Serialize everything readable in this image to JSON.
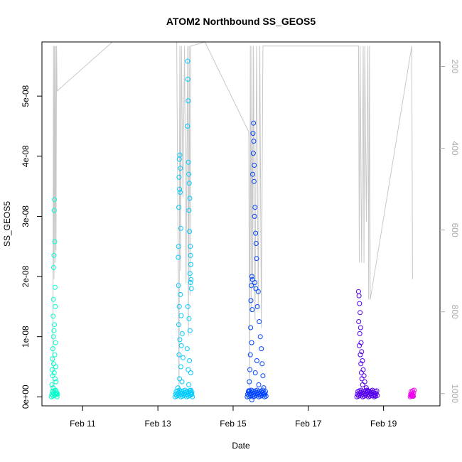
{
  "chart_data": {
    "type": "scatter",
    "title": "ATOM2 Northbound SS_GEOS5",
    "xlabel": "Date",
    "ylabel": "SS_GEOS5",
    "x_unit": "days",
    "xlim": [
      "2016-02-09T22:00",
      "2016-02-20T12:00"
    ],
    "ylim": [
      -1.5e-09,
      5.9e-08
    ],
    "x_ticks": [
      {
        "date": "2016-02-11",
        "label": "Feb 11"
      },
      {
        "date": "2016-02-13",
        "label": "Feb 13"
      },
      {
        "date": "2016-02-15",
        "label": "Feb 15"
      },
      {
        "date": "2016-02-17",
        "label": "Feb 17"
      },
      {
        "date": "2016-02-19",
        "label": "Feb 19"
      }
    ],
    "y_ticks": [
      {
        "value": 0,
        "label": "0e+00"
      },
      {
        "value": 1e-08,
        "label": "1e-08"
      },
      {
        "value": 2e-08,
        "label": "2e-08"
      },
      {
        "value": 3e-08,
        "label": "3e-08"
      },
      {
        "value": 4e-08,
        "label": "4e-08"
      },
      {
        "value": 5e-08,
        "label": "5e-08"
      }
    ],
    "secondary_axis": {
      "label_color": "#aaaaaa",
      "reversed": true,
      "ylim": [
        1030,
        140
      ],
      "ticks": [
        {
          "value": 200,
          "label": "200"
        },
        {
          "value": 400,
          "label": "400"
        },
        {
          "value": 600,
          "label": "600"
        },
        {
          "value": 800,
          "label": "800"
        },
        {
          "value": 1000,
          "label": "1000"
        }
      ]
    },
    "pressure_trace_color": "#c8c8c8",
    "pressure_trace": [
      [
        "2016-02-10T05:00",
        1010
      ],
      [
        "2016-02-10T05:20",
        150
      ],
      [
        "2016-02-10T05:40",
        720
      ],
      [
        "2016-02-10T06:00",
        150
      ],
      [
        "2016-02-10T06:20",
        680
      ],
      [
        "2016-02-10T06:40",
        150
      ],
      [
        "2016-02-10T07:00",
        650
      ],
      [
        "2016-02-10T07:20",
        150
      ],
      [
        "2016-02-10T07:40",
        260
      ],
      [
        "2016-02-11T19:00",
        140
      ],
      [
        "2016-02-13T12:00",
        140
      ],
      [
        "2016-02-13T13:30",
        1005
      ],
      [
        "2016-02-13T14:00",
        150
      ],
      [
        "2016-02-13T14:30",
        700
      ],
      [
        "2016-02-13T15:00",
        150
      ],
      [
        "2016-02-13T16:00",
        520
      ],
      [
        "2016-02-13T17:00",
        150
      ],
      [
        "2016-02-13T18:00",
        730
      ],
      [
        "2016-02-13T19:00",
        150
      ],
      [
        "2016-02-13T19:30",
        860
      ],
      [
        "2016-02-13T20:00",
        150
      ],
      [
        "2016-02-13T20:30",
        760
      ],
      [
        "2016-02-13T21:00",
        150
      ],
      [
        "2016-02-14T06:00",
        140
      ],
      [
        "2016-02-15T10:00",
        360
      ],
      [
        "2016-02-15T10:30",
        1005
      ],
      [
        "2016-02-15T11:00",
        150
      ],
      [
        "2016-02-15T11:30",
        800
      ],
      [
        "2016-02-15T12:00",
        150
      ],
      [
        "2016-02-15T12:30",
        740
      ],
      [
        "2016-02-15T13:00",
        150
      ],
      [
        "2016-02-15T14:00",
        820
      ],
      [
        "2016-02-15T15:00",
        150
      ],
      [
        "2016-02-15T16:00",
        790
      ],
      [
        "2016-02-15T17:00",
        150
      ],
      [
        "2016-02-15T18:00",
        840
      ],
      [
        "2016-02-15T19:00",
        150
      ],
      [
        "2016-02-18T08:00",
        150
      ],
      [
        "2016-02-18T08:30",
        680
      ],
      [
        "2016-02-18T09:00",
        150
      ],
      [
        "2016-02-18T10:00",
        680
      ],
      [
        "2016-02-18T11:00",
        150
      ],
      [
        "2016-02-18T11:30",
        680
      ],
      [
        "2016-02-18T12:00",
        150
      ],
      [
        "2016-02-18T13:00",
        580
      ],
      [
        "2016-02-18T14:00",
        150
      ],
      [
        "2016-02-18T14:30",
        770
      ],
      [
        "2016-02-18T15:00",
        150
      ],
      [
        "2016-02-18T15:30",
        770
      ],
      [
        "2016-02-19T18:00",
        150
      ],
      [
        "2016-02-19T18:30",
        720
      ]
    ],
    "series": [
      {
        "color": "#00ffcc",
        "x_range": [
          "2016-02-10T04:00",
          "2016-02-10T08:00"
        ],
        "points": [
          [
            "2016-02-10T06:00",
            3.28e-08
          ],
          [
            "2016-02-10T05:50",
            3.1e-08
          ],
          [
            "2016-02-10T06:10",
            2.58e-08
          ],
          [
            "2016-02-10T05:40",
            2.35e-08
          ],
          [
            "2016-02-10T05:30",
            2.15e-08
          ],
          [
            "2016-02-10T06:20",
            1.82e-08
          ],
          [
            "2016-02-10T05:20",
            1.62e-08
          ],
          [
            "2016-02-10T06:30",
            1.5e-08
          ],
          [
            "2016-02-10T05:10",
            1.34e-08
          ],
          [
            "2016-02-10T06:00",
            1.2e-08
          ],
          [
            "2016-02-10T05:40",
            1.1e-08
          ],
          [
            "2016-02-10T05:20",
            1e-08
          ],
          [
            "2016-02-10T06:40",
            9e-09
          ],
          [
            "2016-02-10T05:00",
            8e-09
          ],
          [
            "2016-02-10T06:10",
            7e-09
          ],
          [
            "2016-02-10T04:40",
            6.3e-09
          ],
          [
            "2016-02-10T05:30",
            5.5e-09
          ],
          [
            "2016-02-10T06:50",
            5e-09
          ],
          [
            "2016-02-10T04:30",
            4.5e-09
          ],
          [
            "2016-02-10T05:50",
            4e-09
          ],
          [
            "2016-02-10T04:50",
            3.5e-09
          ],
          [
            "2016-02-10T06:20",
            3e-09
          ],
          [
            "2016-02-10T07:00",
            2.5e-09
          ],
          [
            "2016-02-10T04:20",
            2e-09
          ],
          [
            "2016-02-10T05:10",
            1.5e-09
          ],
          [
            "2016-02-10T06:40",
            1e-09
          ],
          [
            "2016-02-10T07:20",
            5e-10
          ]
        ]
      },
      {
        "color": "#00ccff",
        "x_range": [
          "2016-02-13T11:00",
          "2016-02-13T22:00"
        ],
        "points": [
          [
            "2016-02-13T14:00",
            4.02e-08
          ],
          [
            "2016-02-13T13:40",
            3.95e-08
          ],
          [
            "2016-02-13T14:20",
            3.8e-08
          ],
          [
            "2016-02-13T13:30",
            3.65e-08
          ],
          [
            "2016-02-13T13:50",
            3.45e-08
          ],
          [
            "2016-02-13T14:10",
            3.4e-08
          ],
          [
            "2016-02-13T13:20",
            3.15e-08
          ],
          [
            "2016-02-13T14:40",
            2.8e-08
          ],
          [
            "2016-02-13T13:10",
            2.5e-08
          ],
          [
            "2016-02-13T13:00",
            2.32e-08
          ],
          [
            "2016-02-13T19:00",
            5.58e-08
          ],
          [
            "2016-02-13T19:10",
            5.28e-08
          ],
          [
            "2016-02-13T19:20",
            4.92e-08
          ],
          [
            "2016-02-13T18:50",
            4.5e-08
          ],
          [
            "2016-02-13T19:30",
            3.9e-08
          ],
          [
            "2016-02-13T19:40",
            3.7e-08
          ],
          [
            "2016-02-13T20:00",
            3.55e-08
          ],
          [
            "2016-02-13T20:20",
            3.3e-08
          ],
          [
            "2016-02-13T19:50",
            3.1e-08
          ],
          [
            "2016-02-13T20:10",
            2.75e-08
          ],
          [
            "2016-02-13T20:40",
            2.5e-08
          ],
          [
            "2016-02-13T20:50",
            2.35e-08
          ],
          [
            "2016-02-13T21:00",
            2.2e-08
          ],
          [
            "2016-02-13T20:30",
            2.05e-08
          ],
          [
            "2016-02-13T21:10",
            1.95e-08
          ],
          [
            "2016-02-13T20:50",
            1.9e-08
          ],
          [
            "2016-02-13T21:20",
            1.8e-08
          ],
          [
            "2016-02-13T13:10",
            1.85e-08
          ],
          [
            "2016-02-13T14:20",
            1.7e-08
          ],
          [
            "2016-02-13T13:40",
            1.5e-08
          ],
          [
            "2016-02-13T14:50",
            1.35e-08
          ],
          [
            "2016-02-13T13:20",
            1.2e-08
          ],
          [
            "2016-02-13T15:30",
            1.05e-08
          ],
          [
            "2016-02-13T19:10",
            1.5e-08
          ],
          [
            "2016-02-13T19:50",
            1.3e-08
          ],
          [
            "2016-02-13T20:30",
            1.1e-08
          ],
          [
            "2016-02-13T14:00",
            9.5e-09
          ],
          [
            "2016-02-13T15:00",
            8.5e-09
          ],
          [
            "2016-02-13T18:40",
            8e-09
          ],
          [
            "2016-02-13T13:30",
            7e-09
          ],
          [
            "2016-02-13T16:00",
            6.5e-09
          ],
          [
            "2016-02-13T20:10",
            6e-09
          ],
          [
            "2016-02-13T14:40",
            5e-09
          ],
          [
            "2016-02-13T19:20",
            4.5e-09
          ],
          [
            "2016-02-13T21:00",
            4e-09
          ],
          [
            "2016-02-13T13:50",
            3e-09
          ],
          [
            "2016-02-13T15:20",
            2.5e-09
          ],
          [
            "2016-02-13T19:40",
            2e-09
          ],
          [
            "2016-02-13T12:50",
            1.5e-09
          ],
          [
            "2016-02-13T20:40",
            1e-09
          ],
          [
            "2016-02-13T21:30",
            5e-10
          ]
        ]
      },
      {
        "color": "#0044ff",
        "x_range": [
          "2016-02-15T09:00",
          "2016-02-15T21:00"
        ],
        "points": [
          [
            "2016-02-15T13:00",
            4.55e-08
          ],
          [
            "2016-02-15T12:40",
            4.38e-08
          ],
          [
            "2016-02-15T13:10",
            4.25e-08
          ],
          [
            "2016-02-15T12:50",
            4.05e-08
          ],
          [
            "2016-02-15T13:30",
            3.85e-08
          ],
          [
            "2016-02-15T12:30",
            3.7e-08
          ],
          [
            "2016-02-15T13:20",
            3.58e-08
          ],
          [
            "2016-02-15T14:00",
            3.15e-08
          ],
          [
            "2016-02-15T13:40",
            3e-08
          ],
          [
            "2016-02-15T14:20",
            2.72e-08
          ],
          [
            "2016-02-15T14:40",
            2.55e-08
          ],
          [
            "2016-02-15T15:00",
            2.3e-08
          ],
          [
            "2016-02-15T12:00",
            2e-08
          ],
          [
            "2016-02-15T12:20",
            1.95e-08
          ],
          [
            "2016-02-15T13:50",
            1.9e-08
          ],
          [
            "2016-02-15T11:40",
            1.85e-08
          ],
          [
            "2016-02-15T14:30",
            1.8e-08
          ],
          [
            "2016-02-15T16:00",
            1.75e-08
          ],
          [
            "2016-02-15T11:20",
            1.6e-08
          ],
          [
            "2016-02-15T15:30",
            1.5e-08
          ],
          [
            "2016-02-15T12:10",
            1.45e-08
          ],
          [
            "2016-02-15T16:40",
            1.25e-08
          ],
          [
            "2016-02-15T11:10",
            1.15e-08
          ],
          [
            "2016-02-15T17:20",
            1e-08
          ],
          [
            "2016-02-15T11:50",
            9e-09
          ],
          [
            "2016-02-15T18:00",
            8e-09
          ],
          [
            "2016-02-15T11:00",
            7e-09
          ],
          [
            "2016-02-15T15:10",
            6e-09
          ],
          [
            "2016-02-15T18:30",
            5.5e-09
          ],
          [
            "2016-02-15T10:40",
            4.5e-09
          ],
          [
            "2016-02-15T14:10",
            4e-09
          ],
          [
            "2016-02-15T19:00",
            3.5e-09
          ],
          [
            "2016-02-15T10:20",
            2.5e-09
          ],
          [
            "2016-02-15T16:20",
            2e-09
          ],
          [
            "2016-02-15T19:30",
            1.5e-09
          ],
          [
            "2016-02-15T10:00",
            1e-09
          ],
          [
            "2016-02-15T20:00",
            5e-10
          ],
          [
            "2016-02-15T12:00",
            -5e-10
          ]
        ]
      },
      {
        "color": "#5500ee",
        "x_range": [
          "2016-02-18T07:00",
          "2016-02-18T20:00"
        ],
        "points": [
          [
            "2016-02-18T08:00",
            1.75e-08
          ],
          [
            "2016-02-18T08:20",
            1.68e-08
          ],
          [
            "2016-02-18T08:40",
            1.55e-08
          ],
          [
            "2016-02-18T09:00",
            1.4e-08
          ],
          [
            "2016-02-18T08:10",
            1.25e-08
          ],
          [
            "2016-02-18T09:20",
            1.15e-08
          ],
          [
            "2016-02-18T08:50",
            1.05e-08
          ],
          [
            "2016-02-18T09:40",
            9e-09
          ],
          [
            "2016-02-18T08:30",
            8.5e-09
          ],
          [
            "2016-02-18T10:00",
            7.5e-09
          ],
          [
            "2016-02-18T09:10",
            7e-09
          ],
          [
            "2016-02-18T10:30",
            6e-09
          ],
          [
            "2016-02-18T09:30",
            5.5e-09
          ],
          [
            "2016-02-18T11:00",
            4.5e-09
          ],
          [
            "2016-02-18T09:50",
            4e-09
          ],
          [
            "2016-02-18T11:30",
            3.5e-09
          ],
          [
            "2016-02-18T10:10",
            3e-09
          ],
          [
            "2016-02-18T12:00",
            2.5e-09
          ],
          [
            "2016-02-18T10:40",
            2e-09
          ],
          [
            "2016-02-18T13:00",
            1.5e-09
          ],
          [
            "2016-02-18T14:00",
            1e-09
          ],
          [
            "2016-02-18T16:00",
            5e-10
          ],
          [
            "2016-02-18T18:00",
            2e-10
          ]
        ]
      },
      {
        "color": "#ee00ee",
        "x_range": [
          "2016-02-19T17:00",
          "2016-02-19T19:30"
        ],
        "points": [
          [
            "2016-02-19T17:30",
            2e-10
          ],
          [
            "2016-02-19T18:00",
            3e-10
          ],
          [
            "2016-02-19T18:30",
            2e-10
          ],
          [
            "2016-02-19T19:00",
            1e-10
          ]
        ]
      }
    ]
  }
}
